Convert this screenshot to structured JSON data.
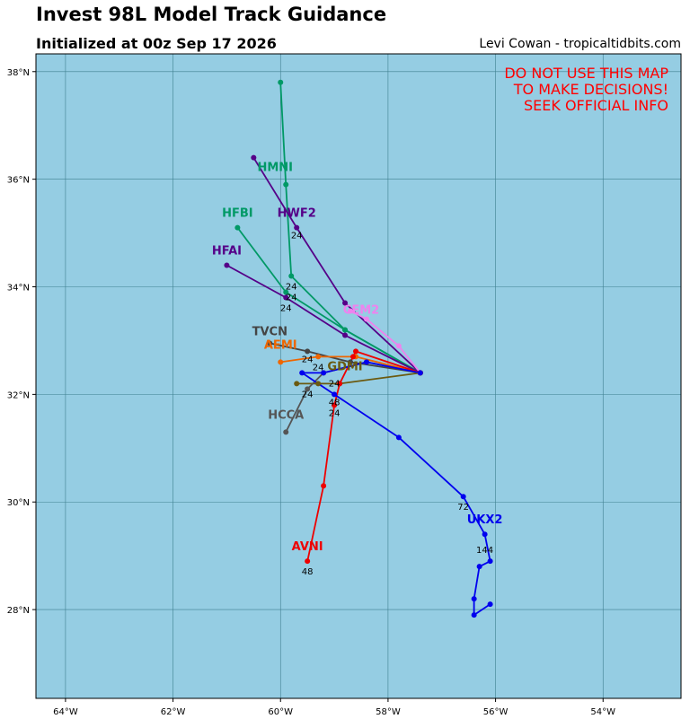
{
  "header": {
    "title": "Invest 98L Model Track Guidance",
    "subtitle": "Initialized at 00z Sep 17 2026",
    "credit": "Levi Cowan - tropicaltidbits.com"
  },
  "warning": [
    "DO NOT USE THIS MAP",
    "TO MAKE DECISIONS!",
    "SEEK OFFICIAL INFO"
  ],
  "chart_data": {
    "type": "line",
    "xlim": [
      -64.55,
      -52.55
    ],
    "ylim": [
      26.35,
      38.33
    ],
    "xticks": [
      -64,
      -62,
      -60,
      -58,
      -56,
      -54
    ],
    "xtick_labels": [
      "64°W",
      "62°W",
      "60°W",
      "58°W",
      "56°W",
      "54°W"
    ],
    "yticks": [
      28,
      30,
      32,
      34,
      36,
      38
    ],
    "ytick_labels": [
      "28°N",
      "30°N",
      "32°N",
      "34°N",
      "36°N",
      "38°N"
    ],
    "grid": true,
    "colors": {
      "ocean": "#95cde3",
      "grid": "#3f7f8f",
      "warning": "#ff0000"
    },
    "series": [
      {
        "name": "HMNI",
        "color": "#009966",
        "label_pos": [
          -60.1,
          36.15
        ],
        "points": [
          [
            -57.4,
            32.4
          ],
          [
            -58.8,
            33.2
          ],
          [
            -59.8,
            34.2
          ],
          [
            -59.9,
            35.9
          ],
          [
            -60.0,
            37.8
          ]
        ]
      },
      {
        "name": "HWF2",
        "color": "#550088",
        "label_pos": [
          -59.7,
          35.3
        ],
        "points": [
          [
            -57.4,
            32.4
          ],
          [
            -58.8,
            33.7
          ],
          [
            -59.7,
            35.1
          ],
          [
            -60.5,
            36.4
          ]
        ]
      },
      {
        "name": "HFBI",
        "color": "#009966",
        "label_pos": [
          -60.8,
          35.3
        ],
        "points": [
          [
            -57.4,
            32.4
          ],
          [
            -58.8,
            33.2
          ],
          [
            -59.9,
            33.9
          ],
          [
            -60.8,
            35.1
          ]
        ]
      },
      {
        "name": "HFAI",
        "color": "#550088",
        "label_pos": [
          -61.0,
          34.6
        ],
        "points": [
          [
            -57.4,
            32.4
          ],
          [
            -58.8,
            33.1
          ],
          [
            -59.9,
            33.8
          ],
          [
            -61.0,
            34.4
          ]
        ]
      },
      {
        "name": "CEM2",
        "color": "#ee82ee",
        "label_pos": [
          -58.5,
          33.5
        ],
        "points": [
          [
            -57.4,
            32.4
          ],
          [
            -57.8,
            32.9
          ],
          [
            -58.4,
            33.4
          ],
          [
            -58.7,
            33.55
          ]
        ]
      },
      {
        "name": "TVCN",
        "color": "#444444",
        "label_pos": [
          -60.2,
          33.1
        ],
        "points": [
          [
            -57.4,
            32.4
          ],
          [
            -58.7,
            32.6
          ],
          [
            -59.5,
            32.8
          ],
          [
            -60.2,
            32.95
          ]
        ]
      },
      {
        "name": "AEMI",
        "color": "#ee6600",
        "label_pos": [
          -60.0,
          32.85
        ],
        "points": [
          [
            -57.4,
            32.4
          ],
          [
            -58.6,
            32.7
          ],
          [
            -59.3,
            32.7
          ],
          [
            -60.0,
            32.6
          ]
        ]
      },
      {
        "name": "GDMI",
        "color": "#6b5a10",
        "label_pos": [
          -58.8,
          32.45
        ],
        "points": [
          [
            -57.4,
            32.4
          ],
          [
            -58.9,
            32.2
          ],
          [
            -59.3,
            32.2
          ],
          [
            -59.7,
            32.2
          ]
        ]
      },
      {
        "name": "HCCA",
        "color": "#555555",
        "label_pos": [
          -59.9,
          31.55
        ],
        "points": [
          [
            -57.4,
            32.4
          ],
          [
            -58.4,
            32.6
          ],
          [
            -59.2,
            32.4
          ],
          [
            -59.5,
            32.1
          ],
          [
            -59.9,
            31.3
          ]
        ]
      },
      {
        "name": "AVNI",
        "color": "#ee0000",
        "label_pos": [
          -59.5,
          29.1
        ],
        "points": [
          [
            -57.4,
            32.4
          ],
          [
            -58.6,
            32.8
          ],
          [
            -58.65,
            32.7
          ],
          [
            -58.9,
            32.2
          ],
          [
            -59.0,
            31.8
          ],
          [
            -59.2,
            30.3
          ],
          [
            -59.5,
            28.9
          ]
        ]
      },
      {
        "name": "UKX2",
        "color": "#0000ee",
        "label_pos": [
          -56.2,
          29.6
        ],
        "points": [
          [
            -57.4,
            32.4
          ],
          [
            -58.4,
            32.6
          ],
          [
            -59.2,
            32.4
          ],
          [
            -59.6,
            32.4
          ],
          [
            -59.0,
            32.0
          ],
          [
            -57.8,
            31.2
          ],
          [
            -56.6,
            30.1
          ],
          [
            -56.2,
            29.4
          ],
          [
            -56.1,
            28.9
          ],
          [
            -56.3,
            28.8
          ],
          [
            -56.4,
            28.2
          ],
          [
            -56.4,
            27.9
          ],
          [
            -56.1,
            28.1
          ]
        ]
      }
    ],
    "hour_labels": [
      {
        "text": "24",
        "pos": [
          -59.7,
          34.9
        ]
      },
      {
        "text": "24",
        "pos": [
          -59.8,
          33.95
        ]
      },
      {
        "text": "24",
        "pos": [
          -59.8,
          33.75
        ]
      },
      {
        "text": "24",
        "pos": [
          -59.9,
          33.55
        ]
      },
      {
        "text": "24",
        "pos": [
          -59.5,
          32.6
        ]
      },
      {
        "text": "24",
        "pos": [
          -59.3,
          32.45
        ]
      },
      {
        "text": "24",
        "pos": [
          -59.0,
          32.15
        ]
      },
      {
        "text": "24",
        "pos": [
          -59.5,
          31.95
        ]
      },
      {
        "text": "48",
        "pos": [
          -59.0,
          31.8
        ]
      },
      {
        "text": "24",
        "pos": [
          -59.0,
          31.6
        ]
      },
      {
        "text": "72",
        "pos": [
          -56.6,
          29.85
        ]
      },
      {
        "text": "144",
        "pos": [
          -56.2,
          29.05
        ]
      },
      {
        "text": "48",
        "pos": [
          -59.5,
          28.65
        ]
      }
    ]
  }
}
